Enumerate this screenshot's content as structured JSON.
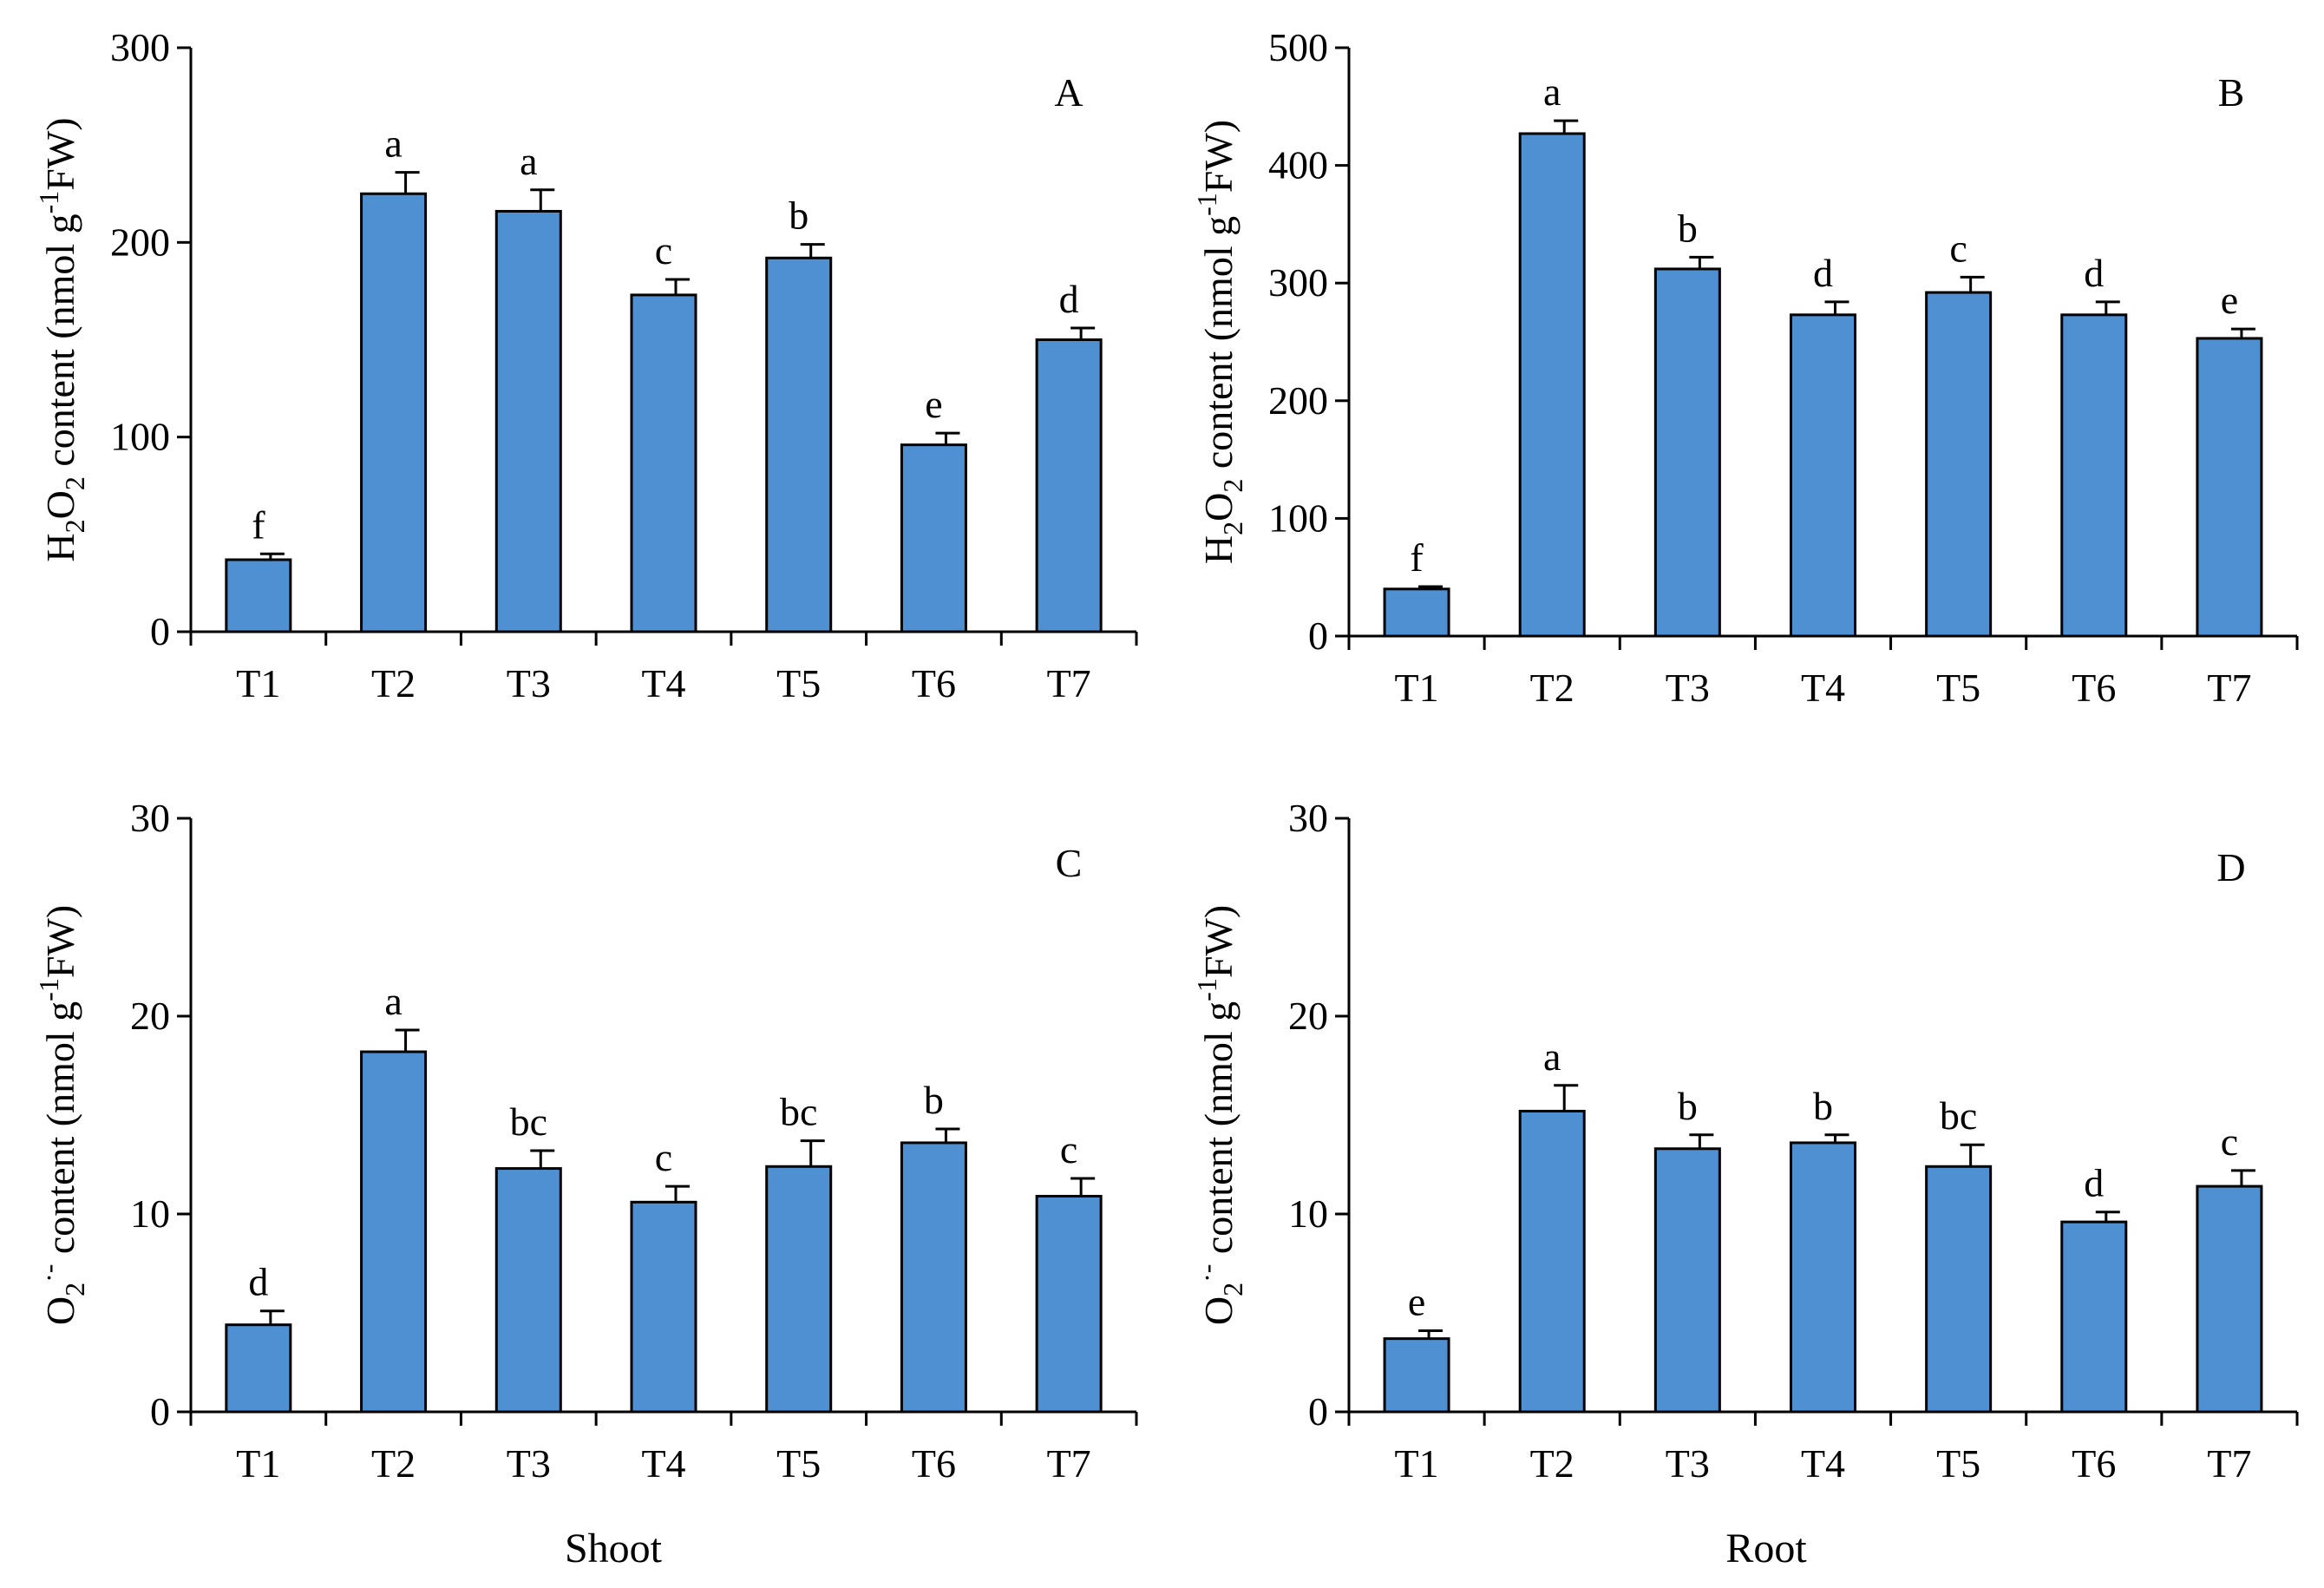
{
  "figure": {
    "bar_color": "#4f90d2",
    "bar_outline": "#000000",
    "column_labels": [
      "Shoot",
      "Root"
    ]
  },
  "chart_data": [
    {
      "type": "bar",
      "panel": "A",
      "categories": [
        "T1",
        "T2",
        "T3",
        "T4",
        "T5",
        "T6",
        "T7"
      ],
      "values": [
        37,
        225,
        216,
        173,
        192,
        96,
        150
      ],
      "errors": [
        3,
        11,
        11,
        8,
        7,
        6,
        6
      ],
      "significance": [
        "f",
        "a",
        "a",
        "c",
        "b",
        "e",
        "d"
      ],
      "ylabel_parts": [
        "H",
        "2",
        "O",
        "2",
        " content (nmol g",
        "-1",
        "FW)"
      ],
      "ylim": [
        0,
        300
      ],
      "yticks": [
        0,
        100,
        200,
        300
      ],
      "xlabel": ""
    },
    {
      "type": "bar",
      "panel": "B",
      "categories": [
        "T1",
        "T2",
        "T3",
        "T4",
        "T5",
        "T6",
        "T7"
      ],
      "values": [
        40,
        427,
        312,
        273,
        292,
        273,
        253
      ],
      "errors": [
        2,
        11,
        10,
        11,
        13,
        11,
        8
      ],
      "significance": [
        "f",
        "a",
        "b",
        "d",
        "c",
        "d",
        "e"
      ],
      "ylabel_parts": [
        "H",
        "2",
        "O",
        "2",
        " content (nmol g",
        "-1",
        "FW)"
      ],
      "ylim": [
        0,
        500
      ],
      "yticks": [
        0,
        100,
        200,
        300,
        400,
        500
      ],
      "xlabel": ""
    },
    {
      "type": "bar",
      "panel": "C",
      "categories": [
        "T1",
        "T2",
        "T3",
        "T4",
        "T5",
        "T6",
        "T7"
      ],
      "values": [
        4.4,
        18.2,
        12.3,
        10.6,
        12.4,
        13.6,
        10.9
      ],
      "errors": [
        0.7,
        1.1,
        0.9,
        0.8,
        1.3,
        0.7,
        0.9
      ],
      "significance": [
        "d",
        "a",
        "bc",
        "c",
        "bc",
        "b",
        "c"
      ],
      "ylabel_parts": [
        "O",
        "2",
        "·-",
        "",
        " content (nmol g",
        "-1",
        "FW)"
      ],
      "ylim": [
        0,
        30
      ],
      "yticks": [
        0,
        10,
        20,
        30
      ],
      "xlabel": "Shoot"
    },
    {
      "type": "bar",
      "panel": "D",
      "categories": [
        "T1",
        "T2",
        "T3",
        "T4",
        "T5",
        "T6",
        "T7"
      ],
      "values": [
        3.7,
        15.2,
        13.3,
        13.6,
        12.4,
        9.6,
        11.4
      ],
      "errors": [
        0.4,
        1.3,
        0.7,
        0.4,
        1.1,
        0.5,
        0.8
      ],
      "significance": [
        "e",
        "a",
        "b",
        "b",
        "bc",
        "d",
        "c"
      ],
      "ylabel_parts": [
        "O",
        "2",
        "·-",
        "",
        " content (nmol g",
        "-1",
        "FW)"
      ],
      "ylim": [
        0,
        30
      ],
      "yticks": [
        0,
        10,
        20,
        30
      ],
      "xlabel": "Root"
    }
  ]
}
